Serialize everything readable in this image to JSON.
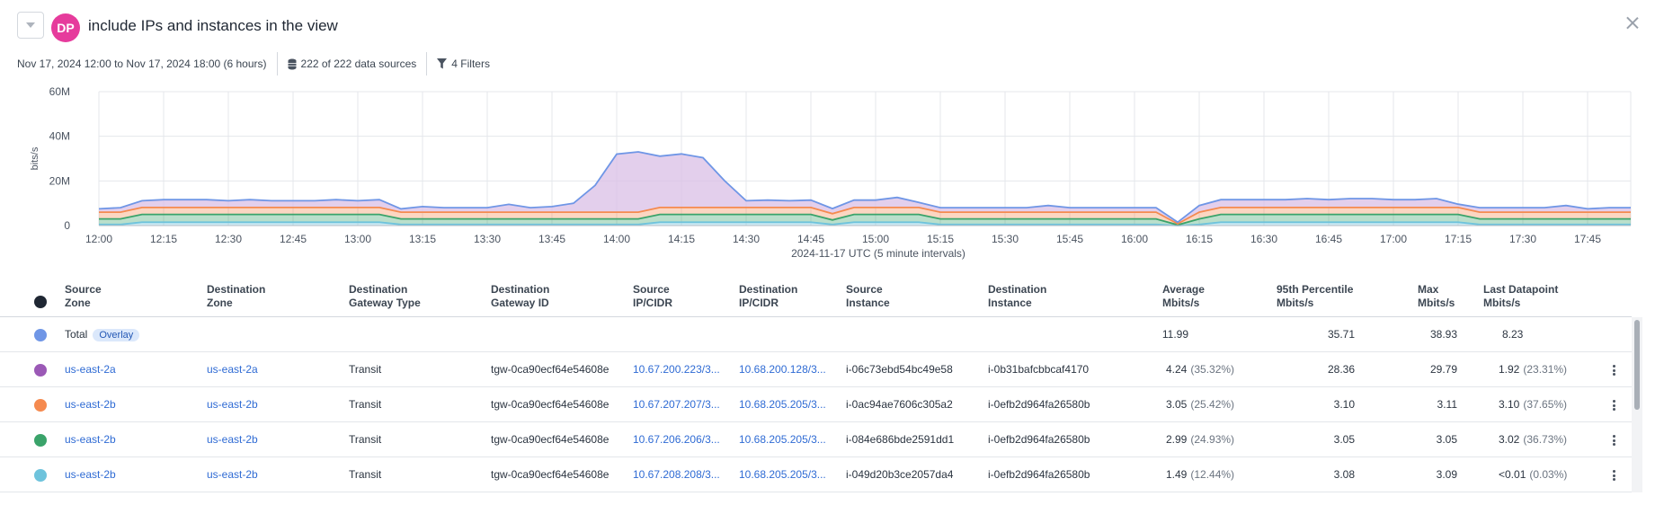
{
  "header": {
    "avatar_initials": "DP",
    "avatar_color": "#e63b9c",
    "title": "include IPs and instances in the view"
  },
  "meta": {
    "time_range": "Nov 17, 2024 12:00 to Nov 17, 2024 18:00 (6 hours)",
    "data_sources": "222 of 222 data sources",
    "filters": "4 Filters"
  },
  "chart_data": {
    "type": "area",
    "ylabel": "bits/s",
    "xlabel": "2024-11-17 UTC (5 minute intervals)",
    "ylim": [
      0,
      60000000
    ],
    "yticks": [
      "60M",
      "40M",
      "20M",
      "0"
    ],
    "xticks": [
      "12:00",
      "12:15",
      "12:30",
      "12:45",
      "13:00",
      "13:15",
      "13:30",
      "13:45",
      "14:00",
      "14:15",
      "14:30",
      "14:45",
      "15:00",
      "15:15",
      "15:30",
      "15:45",
      "16:00",
      "16:15",
      "16:30",
      "16:45",
      "17:00",
      "17:15",
      "17:30",
      "17:45"
    ],
    "grid": true,
    "x": [
      "12:00",
      "12:05",
      "12:10",
      "12:15",
      "12:20",
      "12:25",
      "12:30",
      "12:35",
      "12:40",
      "12:45",
      "12:50",
      "12:55",
      "13:00",
      "13:05",
      "13:10",
      "13:15",
      "13:20",
      "13:25",
      "13:30",
      "13:35",
      "13:40",
      "13:45",
      "13:50",
      "13:55",
      "14:00",
      "14:05",
      "14:10",
      "14:15",
      "14:20",
      "14:25",
      "14:30",
      "14:35",
      "14:40",
      "14:45",
      "14:50",
      "14:55",
      "15:00",
      "15:05",
      "15:10",
      "15:15",
      "15:20",
      "15:25",
      "15:30",
      "15:35",
      "15:40",
      "15:45",
      "15:50",
      "15:55",
      "16:00",
      "16:05",
      "16:10",
      "16:15",
      "16:20",
      "16:25",
      "16:30",
      "16:35",
      "16:40",
      "16:45",
      "16:50",
      "16:55",
      "17:00",
      "17:05",
      "17:10",
      "17:15",
      "17:20",
      "17:25",
      "17:30",
      "17:35",
      "17:40",
      "17:45",
      "17:50",
      "17:55"
    ],
    "series": [
      {
        "color": "#6ec3dc",
        "values": [
          0.5,
          0.5,
          1.5,
          1.5,
          1.5,
          1.5,
          1.5,
          1.5,
          1.5,
          1.5,
          1.5,
          1.5,
          1.5,
          1.5,
          0.5,
          0.5,
          0.5,
          0.5,
          0.5,
          0.5,
          0.5,
          0.5,
          0.5,
          0.5,
          0.5,
          0.5,
          1.5,
          1.5,
          1.5,
          1.5,
          1.5,
          1.5,
          1.5,
          1.5,
          0.5,
          1.5,
          1.5,
          1.5,
          1.5,
          0.5,
          0.5,
          0.5,
          0.5,
          0.5,
          0.5,
          0.5,
          0.5,
          0.5,
          0.5,
          0.5,
          0,
          0.5,
          1.5,
          1.5,
          1.5,
          1.5,
          1.5,
          1.5,
          1.5,
          1.5,
          1.5,
          1.5,
          1.5,
          1.5,
          0.5,
          0.5,
          0.5,
          0.5,
          0.5,
          0.5,
          0.5,
          0.5
        ]
      },
      {
        "color": "#3aa36a",
        "values": [
          2.5,
          2.5,
          3.5,
          3.5,
          3.5,
          3.5,
          3.5,
          3.5,
          3.5,
          3.5,
          3.5,
          3.5,
          3.5,
          3.5,
          2.5,
          2.5,
          2.5,
          2.5,
          2.5,
          2.5,
          2.5,
          2.5,
          2.5,
          2.5,
          2.5,
          2.5,
          3.5,
          3.5,
          3.5,
          3.5,
          3.5,
          3.5,
          3.5,
          3.5,
          2,
          3.5,
          3.5,
          3.5,
          3.5,
          2.5,
          2.5,
          2.5,
          2.5,
          2.5,
          2.5,
          2.5,
          2.5,
          2.5,
          2.5,
          2.5,
          0.3,
          2.5,
          3.5,
          3.5,
          3.5,
          3.5,
          3.5,
          3.5,
          3.5,
          3.5,
          3.5,
          3.5,
          3.5,
          3.5,
          2.5,
          2.5,
          2.5,
          2.5,
          2.5,
          2.5,
          2.5,
          2.5
        ]
      },
      {
        "color": "#f58a4f",
        "values": [
          3,
          3,
          3.1,
          3.1,
          3.1,
          3.1,
          3.1,
          3.1,
          3.1,
          3.1,
          3.1,
          3.1,
          3.1,
          3.1,
          3,
          3,
          3,
          3,
          3,
          3,
          3,
          3,
          3,
          3,
          3,
          3,
          3.1,
          3.1,
          3.1,
          3.1,
          3.1,
          3.1,
          3.1,
          3.1,
          2.8,
          3.1,
          3.1,
          3.1,
          3.1,
          3,
          3,
          3,
          3,
          3,
          3,
          3,
          3,
          3,
          3,
          3,
          0.5,
          3,
          3.1,
          3.1,
          3.1,
          3.1,
          3.1,
          3.1,
          3.1,
          3.1,
          3.1,
          3.1,
          3.1,
          3.1,
          3,
          3,
          3,
          3,
          3,
          3,
          3,
          3
        ]
      },
      {
        "color": "#9b59b6",
        "values": [
          1.5,
          2,
          3,
          3.5,
          3.5,
          3.5,
          3,
          3.5,
          3,
          3,
          3,
          3.5,
          3,
          3.5,
          1.5,
          2.5,
          2,
          2,
          2,
          3.5,
          2,
          2.5,
          4,
          12,
          26,
          27,
          23,
          24,
          22.3,
          12,
          3,
          3.3,
          3,
          3.3,
          2.3,
          3.3,
          3.3,
          4.5,
          2.3,
          2,
          2,
          2,
          2,
          2,
          3,
          2,
          2,
          2,
          2,
          2,
          0.7,
          3,
          3.5,
          3.5,
          3.5,
          3.5,
          4,
          3.5,
          4,
          4,
          3.5,
          3.5,
          4,
          1.5,
          2,
          2,
          2,
          2,
          3,
          1.5,
          2,
          2
        ]
      }
    ]
  },
  "table": {
    "columns": [
      "Source\nZone",
      "Destination\nZone",
      "Destination\nGateway Type",
      "Destination\nGateway ID",
      "Source\nIP/CIDR",
      "Destination\nIP/CIDR",
      "Source\nInstance",
      "Destination\nInstance",
      "Average\nMbits/s",
      "95th Percentile\nMbits/s",
      "Max\nMbits/s",
      "Last Datapoint\nMbits/s"
    ],
    "total": {
      "label": "Total",
      "badge": "Overlay",
      "color": "#6f96e6",
      "average": "11.99",
      "p95": "35.71",
      "max": "38.93",
      "last": "8.23"
    },
    "rows": [
      {
        "color": "#9b59b6",
        "src_zone": "us-east-2a",
        "dst_zone": "us-east-2a",
        "gw_type": "Transit",
        "gw_id": "tgw-0ca90ecf64e54608e",
        "src_ip": "10.67.200.223/3...",
        "dst_ip": "10.68.200.128/3...",
        "src_inst": "i-06c73ebd54bc49e58",
        "dst_inst": "i-0b31bafcbbcaf4170",
        "average": "4.24",
        "average_pct": "(35.32%)",
        "p95": "28.36",
        "max": "29.79",
        "last": "1.92",
        "last_pct": "(23.31%)"
      },
      {
        "color": "#f58a4f",
        "src_zone": "us-east-2b",
        "dst_zone": "us-east-2b",
        "gw_type": "Transit",
        "gw_id": "tgw-0ca90ecf64e54608e",
        "src_ip": "10.67.207.207/3...",
        "dst_ip": "10.68.205.205/3...",
        "src_inst": "i-0ac94ae7606c305a2",
        "dst_inst": "i-0efb2d964fa26580b",
        "average": "3.05",
        "average_pct": "(25.42%)",
        "p95": "3.10",
        "max": "3.11",
        "last": "3.10",
        "last_pct": "(37.65%)"
      },
      {
        "color": "#3aa36a",
        "src_zone": "us-east-2b",
        "dst_zone": "us-east-2b",
        "gw_type": "Transit",
        "gw_id": "tgw-0ca90ecf64e54608e",
        "src_ip": "10.67.206.206/3...",
        "dst_ip": "10.68.205.205/3...",
        "src_inst": "i-084e686bde2591dd1",
        "dst_inst": "i-0efb2d964fa26580b",
        "average": "2.99",
        "average_pct": "(24.93%)",
        "p95": "3.05",
        "max": "3.05",
        "last": "3.02",
        "last_pct": "(36.73%)"
      },
      {
        "color": "#6ec3dc",
        "src_zone": "us-east-2b",
        "dst_zone": "us-east-2b",
        "gw_type": "Transit",
        "gw_id": "tgw-0ca90ecf64e54608e",
        "src_ip": "10.67.208.208/3...",
        "dst_ip": "10.68.205.205/3...",
        "src_inst": "i-049d20b3ce2057da4",
        "dst_inst": "i-0efb2d964fa26580b",
        "average": "1.49",
        "average_pct": "(12.44%)",
        "p95": "3.08",
        "max": "3.09",
        "last": "<0.01",
        "last_pct": "(0.03%)"
      }
    ]
  },
  "colors": {
    "link": "#2f6bd4",
    "total_line": "#6f96e6",
    "spike_fill": "#d9bfe6"
  }
}
